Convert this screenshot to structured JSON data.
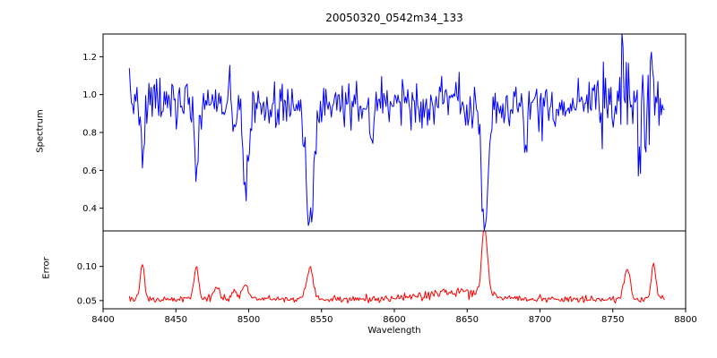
{
  "title": "20050320_0542m34_133",
  "figure": {
    "background": "#ffffff",
    "axis_color": "#000000"
  },
  "chart_data": {
    "type": "line",
    "title": "20050320_0542m34_133",
    "xlabel": "Wavelength",
    "x_range": [
      8400,
      8800
    ],
    "x_ticks": [
      8400,
      8450,
      8500,
      8550,
      8600,
      8650,
      8700,
      8750,
      8800
    ],
    "x_tick_labels": [
      "8400",
      "8450",
      "8500",
      "8550",
      "8600",
      "8650",
      "8700",
      "8750",
      "8800"
    ],
    "x_data_range": [
      8418,
      8786
    ],
    "step": 0.75,
    "seed": 7,
    "panels": [
      {
        "name": "spectrum",
        "ylabel": "Spectrum",
        "ylim": [
          0.28,
          1.32
        ],
        "y_ticks": [
          0.4,
          0.6,
          0.8,
          1.0,
          1.2
        ],
        "y_tick_labels": [
          "0.4",
          "0.6",
          "0.8",
          "1.0",
          "1.2"
        ],
        "color": "#0000ff",
        "baseline": 0.96,
        "noise_sigma": 0.065,
        "noise_boost": [
          {
            "from": 8745,
            "to": 8786,
            "factor": 1.7
          }
        ],
        "features": [
          {
            "center": 8427,
            "amp": -0.3,
            "width": 1.2
          },
          {
            "center": 8464,
            "amp": -0.4,
            "width": 1.3
          },
          {
            "center": 8490,
            "amp": -0.18,
            "width": 1.0
          },
          {
            "center": 8498,
            "amp": -0.47,
            "width": 1.9
          },
          {
            "center": 8520,
            "amp": -0.16,
            "width": 1.0
          },
          {
            "center": 8542,
            "amp": -0.65,
            "width": 2.8
          },
          {
            "center": 8584,
            "amp": -0.2,
            "width": 1.0
          },
          {
            "center": 8662,
            "amp": -0.65,
            "width": 2.3
          },
          {
            "center": 8690,
            "amp": -0.25,
            "width": 1.0
          },
          {
            "center": 8757,
            "amp": 0.28,
            "width": 1.0
          },
          {
            "center": 8768,
            "amp": -0.28,
            "width": 1.0
          },
          {
            "center": 8777,
            "amp": 0.24,
            "width": 1.0
          }
        ]
      },
      {
        "name": "error",
        "ylabel": "Error",
        "ylim": [
          0.038,
          0.152
        ],
        "y_ticks": [
          0.05,
          0.1
        ],
        "y_tick_labels": [
          "0.05",
          "0.10"
        ],
        "color": "#ff0000",
        "baseline": 0.052,
        "noise_sigma": 0.0025,
        "noise_boost": [
          {
            "from": 8615,
            "to": 8665,
            "factor": 1.6
          }
        ],
        "features": [
          {
            "center": 8427,
            "amp": 0.05,
            "width": 1.5
          },
          {
            "center": 8464,
            "amp": 0.05,
            "width": 1.5
          },
          {
            "center": 8478,
            "amp": 0.018,
            "width": 2.0
          },
          {
            "center": 8490,
            "amp": 0.015,
            "width": 1.5
          },
          {
            "center": 8498,
            "amp": 0.022,
            "width": 2.0
          },
          {
            "center": 8542,
            "amp": 0.045,
            "width": 2.2
          },
          {
            "center": 8640,
            "amp": 0.01,
            "width": 22.0
          },
          {
            "center": 8662,
            "amp": 0.1,
            "width": 2.0
          },
          {
            "center": 8760,
            "amp": 0.045,
            "width": 2.0
          },
          {
            "center": 8778,
            "amp": 0.05,
            "width": 1.5
          }
        ]
      }
    ]
  }
}
